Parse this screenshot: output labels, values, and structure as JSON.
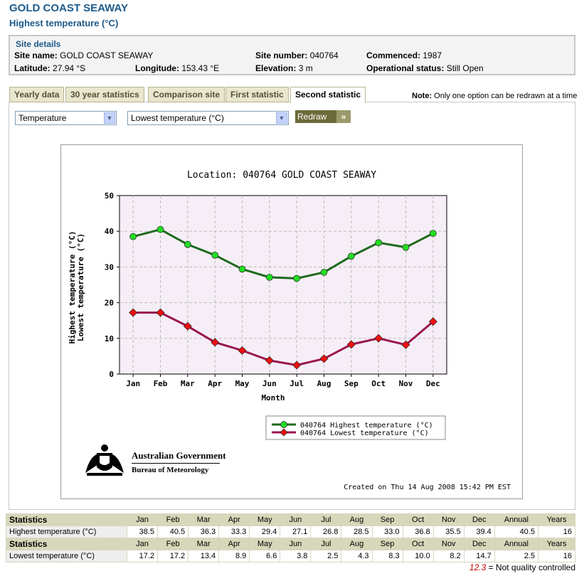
{
  "page": {
    "title": "GOLD COAST SEAWAY",
    "subtitle": "Highest temperature (°C)"
  },
  "site": {
    "header": "Site details",
    "name_label": "Site name:",
    "name": "GOLD COAST SEAWAY",
    "number_label": "Site number:",
    "number": "040764",
    "commenced_label": "Commenced:",
    "commenced": "1987",
    "latitude_label": "Latitude:",
    "latitude": "27.94 °S",
    "longitude_label": "Longitude:",
    "longitude": "153.43 °E",
    "elevation_label": "Elevation:",
    "elevation": "3 m",
    "status_label": "Operational status:",
    "status": "Still Open"
  },
  "tabs": [
    {
      "label": "Yearly data"
    },
    {
      "label": "30 year statistics"
    },
    {
      "label": "Comparison site"
    },
    {
      "label": "First statistic"
    },
    {
      "label": "Second statistic"
    }
  ],
  "note": {
    "bold": "Note:",
    "text": " Only one option can be redrawn at a time"
  },
  "controls": {
    "category_select": "Temperature",
    "statistic_select": "Lowest temperature (°C)",
    "redraw_label": "Redraw",
    "redraw_chevron": "»"
  },
  "chart_data": {
    "type": "line",
    "title": "Location: 040764 GOLD COAST SEAWAY",
    "xlabel": "Month",
    "ylabel_lines": [
      "Highest temperature (°C)",
      "Lowest temperature (°C)"
    ],
    "categories": [
      "Jan",
      "Feb",
      "Mar",
      "Apr",
      "May",
      "Jun",
      "Jul",
      "Aug",
      "Sep",
      "Oct",
      "Nov",
      "Dec"
    ],
    "ylim": [
      0,
      50
    ],
    "yticks": [
      0,
      10,
      20,
      30,
      40,
      50
    ],
    "grid": true,
    "legend_position": "bottom-right",
    "series": [
      {
        "name": "040764 Highest temperature (°C)",
        "color": "#1e6a1e",
        "marker_color": "#22dd22",
        "marker": "circle",
        "values": [
          38.5,
          40.5,
          36.3,
          33.3,
          29.4,
          27.1,
          26.8,
          28.5,
          33.0,
          36.8,
          35.5,
          39.4
        ]
      },
      {
        "name": "040764 Lowest temperature (°C)",
        "color": "#9a1650",
        "marker_color": "#ee1111",
        "marker": "diamond",
        "values": [
          17.2,
          17.2,
          13.4,
          8.9,
          6.6,
          3.8,
          2.5,
          4.3,
          8.3,
          10.0,
          8.2,
          14.7
        ]
      }
    ],
    "plot_background": "#f6eef6"
  },
  "branding": {
    "gov": "Australian Government",
    "bureau": "Bureau of Meteorology",
    "created": "Created on Thu 14 Aug 2008 15:42 PM EST"
  },
  "stats": {
    "header_label": "Statistics",
    "columns": [
      "Jan",
      "Feb",
      "Mar",
      "Apr",
      "May",
      "Jun",
      "Jul",
      "Aug",
      "Sep",
      "Oct",
      "Nov",
      "Dec",
      "Annual",
      "Years"
    ],
    "rows": [
      {
        "label": "Highest temperature (°C)",
        "values": [
          "38.5",
          "40.5",
          "36.3",
          "33.3",
          "29.4",
          "27.1",
          "26.8",
          "28.5",
          "33.0",
          "36.8",
          "35.5",
          "39.4",
          "40.5",
          "16"
        ]
      },
      {
        "label": "Lowest temperature (°C)",
        "values": [
          "17.2",
          "17.2",
          "13.4",
          "8.9",
          "6.6",
          "3.8",
          "2.5",
          "4.3",
          "8.3",
          "10.0",
          "8.2",
          "14.7",
          "2.5",
          "16"
        ]
      }
    ],
    "qc_value": "12.3",
    "qc_text": " = Not quality controlled"
  }
}
